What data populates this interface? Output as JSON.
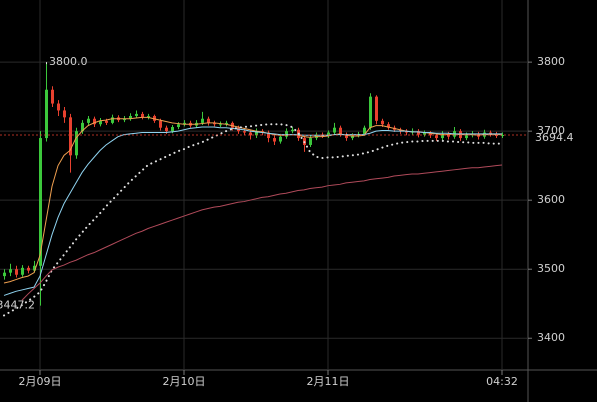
{
  "chart_data": {
    "type": "candlestick",
    "categories": [
      null,
      null,
      null,
      null,
      null,
      null,
      "2月09日",
      null,
      null,
      null,
      null,
      null,
      null,
      null,
      null,
      null,
      null,
      null,
      null,
      null,
      null,
      null,
      null,
      null,
      null,
      null,
      null,
      null,
      null,
      null,
      "2月10日",
      null,
      null,
      null,
      null,
      null,
      null,
      null,
      null,
      null,
      null,
      null,
      null,
      null,
      null,
      null,
      null,
      null,
      null,
      null,
      null,
      null,
      null,
      null,
      "2月11日",
      null,
      null,
      null,
      null,
      null,
      null,
      null,
      null,
      null,
      null,
      null,
      null,
      null,
      null,
      null,
      null,
      null,
      null,
      null,
      null,
      null,
      null,
      null,
      null,
      null,
      null,
      null,
      null,
      "04:32"
    ],
    "open": [
      3490,
      3495,
      3500,
      3492,
      3502,
      3498,
      3505,
      3690,
      3760,
      3740,
      3730,
      3720,
      3665,
      3700,
      3712,
      3718,
      3710,
      3715,
      3712,
      3720,
      3716,
      3718,
      3722,
      3725,
      3720,
      3722,
      3715,
      3705,
      3700,
      3706,
      3710,
      3712,
      3708,
      3712,
      3718,
      3712,
      3710,
      3710,
      3712,
      3705,
      3700,
      3698,
      3694,
      3700,
      3698,
      3690,
      3685,
      3692,
      3700,
      3702,
      3690,
      3680,
      3690,
      3695,
      3693,
      3698,
      3705,
      3695,
      3690,
      3694,
      3696,
      3705,
      3750,
      3715,
      3710,
      3705,
      3702,
      3700,
      3698,
      3700,
      3695,
      3698,
      3694,
      3690,
      3696,
      3692,
      3700,
      3690,
      3694,
      3696,
      3692,
      3698,
      3696,
      3693
    ],
    "high": [
      3500,
      3508,
      3505,
      3506,
      3505,
      3512,
      3700,
      3800,
      3765,
      3745,
      3735,
      3725,
      3705,
      3716,
      3722,
      3721,
      3719,
      3718,
      3724,
      3723,
      3722,
      3726,
      3730,
      3728,
      3725,
      3724,
      3718,
      3708,
      3709,
      3713,
      3716,
      3715,
      3716,
      3728,
      3721,
      3715,
      3714,
      3715,
      3714,
      3708,
      3703,
      3701,
      3704,
      3703,
      3701,
      3694,
      3696,
      3704,
      3706,
      3705,
      3693,
      3694,
      3698,
      3698,
      3701,
      3712,
      3708,
      3698,
      3697,
      3699,
      3708,
      3755,
      3752,
      3718,
      3713,
      3708,
      3705,
      3703,
      3704,
      3703,
      3701,
      3700,
      3697,
      3700,
      3699,
      3706,
      3703,
      3698,
      3700,
      3699,
      3702,
      3701,
      3699,
      3698
    ],
    "low": [
      3485,
      3490,
      3488,
      3489,
      3494,
      3495,
      3447.2,
      3685,
      3735,
      3722,
      3712,
      3640,
      3660,
      3696,
      3708,
      3706,
      3707,
      3709,
      3710,
      3713,
      3713,
      3715,
      3719,
      3717,
      3717,
      3712,
      3701,
      3696,
      3697,
      3703,
      3707,
      3705,
      3705,
      3709,
      3708,
      3707,
      3706,
      3707,
      3701,
      3696,
      3694,
      3688,
      3690,
      3694,
      3684,
      3680,
      3682,
      3689,
      3697,
      3686,
      3670,
      3677,
      3687,
      3690,
      3690,
      3695,
      3692,
      3686,
      3687,
      3691,
      3693,
      3702,
      3710,
      3706,
      3702,
      3699,
      3696,
      3694,
      3695,
      3691,
      3692,
      3690,
      3686,
      3687,
      3688,
      3689,
      3686,
      3687,
      3691,
      3688,
      3689,
      3692,
      3690,
      3690
    ],
    "close": [
      3495,
      3500,
      3492,
      3502,
      3498,
      3505,
      3690,
      3760,
      3740,
      3730,
      3720,
      3665,
      3700,
      3712,
      3718,
      3710,
      3715,
      3712,
      3720,
      3716,
      3718,
      3722,
      3725,
      3720,
      3722,
      3715,
      3705,
      3700,
      3706,
      3710,
      3712,
      3708,
      3712,
      3718,
      3712,
      3710,
      3710,
      3712,
      3705,
      3700,
      3698,
      3694,
      3700,
      3698,
      3690,
      3685,
      3692,
      3700,
      3702,
      3690,
      3680,
      3690,
      3695,
      3693,
      3698,
      3705,
      3695,
      3690,
      3694,
      3696,
      3705,
      3750,
      3715,
      3710,
      3705,
      3702,
      3700,
      3698,
      3700,
      3695,
      3698,
      3694,
      3690,
      3696,
      3692,
      3700,
      3690,
      3694,
      3696,
      3692,
      3698,
      3696,
      3693,
      3694.4
    ],
    "up_color": "#3cc83c",
    "down_color": "#e8412f",
    "lines": [
      {
        "color": "#f0a050",
        "style": "solid",
        "values": [
          3480,
          3482,
          3485,
          3488,
          3490,
          3495,
          3520,
          3570,
          3620,
          3650,
          3665,
          3672,
          3690,
          3700,
          3708,
          3712,
          3715,
          3716,
          3718,
          3718,
          3718,
          3718,
          3719,
          3720,
          3720,
          3718,
          3716,
          3714,
          3712,
          3711,
          3710,
          3710,
          3710,
          3711,
          3712,
          3712,
          3711,
          3710,
          3708,
          3706,
          3704,
          3702,
          3700,
          3699,
          3697,
          3695,
          3694,
          3694,
          3695,
          3694,
          3692,
          3691,
          3692,
          3692,
          3693,
          3695,
          3696,
          3694,
          3693,
          3693,
          3694,
          3705,
          3708,
          3708,
          3706,
          3704,
          3702,
          3700,
          3699,
          3699,
          3698,
          3697,
          3696,
          3695,
          3695,
          3696,
          3695,
          3695,
          3695,
          3694,
          3695,
          3695,
          3695,
          3695
        ]
      },
      {
        "color": "#8fd3f0",
        "style": "solid",
        "values": [
          3462,
          3465,
          3468,
          3470,
          3472,
          3474,
          3490,
          3520,
          3550,
          3575,
          3595,
          3610,
          3625,
          3640,
          3652,
          3662,
          3672,
          3680,
          3686,
          3692,
          3695,
          3696,
          3697,
          3698,
          3698,
          3698,
          3698,
          3698,
          3699,
          3700,
          3702,
          3704,
          3705,
          3706,
          3706,
          3706,
          3705,
          3705,
          3704,
          3703,
          3702,
          3700,
          3699,
          3698,
          3697,
          3696,
          3695,
          3695,
          3695,
          3695,
          3694,
          3694,
          3694,
          3694,
          3694,
          3695,
          3695,
          3695,
          3695,
          3695,
          3695,
          3697,
          3700,
          3701,
          3701,
          3700,
          3700,
          3700,
          3699,
          3699,
          3698,
          3698,
          3697,
          3697,
          3697,
          3696,
          3696,
          3696,
          3696,
          3696,
          3696,
          3696,
          3696,
          3696
        ]
      },
      {
        "color": "#e0e0e0",
        "style": "dotted",
        "values": [
          3433,
          3438,
          3443,
          3448,
          3454,
          3460,
          3467,
          3482,
          3499,
          3510,
          3521,
          3532,
          3543,
          3553,
          3563,
          3572,
          3581,
          3591,
          3600,
          3609,
          3618,
          3627,
          3635,
          3643,
          3651,
          3655,
          3659,
          3663,
          3667,
          3671,
          3674,
          3678,
          3681,
          3684,
          3688,
          3692,
          3696,
          3700,
          3703,
          3705,
          3706,
          3707,
          3708,
          3709,
          3710,
          3710,
          3710,
          3709,
          3706,
          3698,
          3685,
          3670,
          3663,
          3661,
          3662,
          3662,
          3663,
          3664,
          3665,
          3666,
          3668,
          3670,
          3673,
          3676,
          3679,
          3681,
          3683,
          3684,
          3685,
          3685,
          3686,
          3686,
          3686,
          3686,
          3685,
          3685,
          3684,
          3684,
          3683,
          3683,
          3683,
          3682,
          3682,
          3682
        ]
      },
      {
        "color": "#b04a5a",
        "style": "solid",
        "values": [
          null,
          null,
          null,
          3455,
          3464,
          3472,
          3480,
          3490,
          3499,
          3503,
          3506,
          3510,
          3513,
          3517,
          3521,
          3524,
          3528,
          3532,
          3536,
          3540,
          3544,
          3548,
          3552,
          3555,
          3559,
          3562,
          3565,
          3568,
          3571,
          3574,
          3577,
          3580,
          3583,
          3586,
          3588,
          3590,
          3591,
          3593,
          3595,
          3597,
          3598,
          3600,
          3602,
          3604,
          3605,
          3607,
          3609,
          3610,
          3612,
          3614,
          3615,
          3617,
          3618,
          3619,
          3621,
          3622,
          3623,
          3625,
          3626,
          3627,
          3628,
          3630,
          3631,
          3632,
          3633,
          3635,
          3636,
          3637,
          3638,
          3638,
          3639,
          3640,
          3641,
          3642,
          3643,
          3644,
          3645,
          3646,
          3647,
          3647,
          3648,
          3649,
          3650,
          3651
        ]
      }
    ],
    "ylim": [
      3354,
      3890
    ],
    "yticks": [
      3400,
      3500,
      3600,
      3700,
      3800
    ],
    "grid": true,
    "max_label": {
      "value": 3800,
      "label": "3800.0"
    },
    "min_label": 3447.2,
    "last_price": 3694.4,
    "last_price_color": "#e8412f"
  }
}
